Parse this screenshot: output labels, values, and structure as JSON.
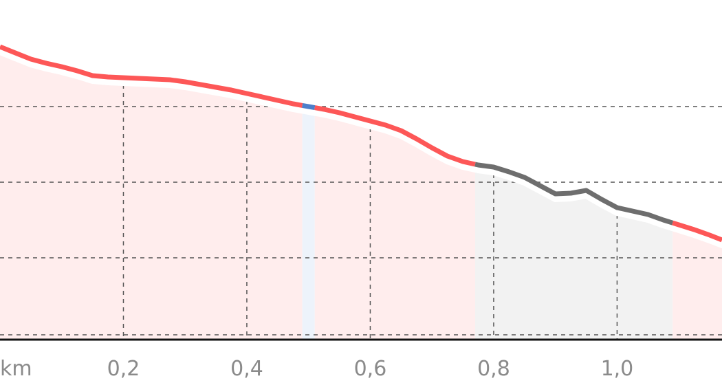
{
  "chart_data": {
    "type": "area",
    "title": "",
    "xlabel": "",
    "ylabel": "",
    "x_unit": "km",
    "xlim": [
      0,
      1.17
    ],
    "x_ticks": [
      {
        "value": 0.2,
        "label": "0,2"
      },
      {
        "value": 0.4,
        "label": "0,4"
      },
      {
        "value": 0.6,
        "label": "0,6"
      },
      {
        "value": 0.8,
        "label": "0,8"
      },
      {
        "value": 1.0,
        "label": "1,0"
      }
    ],
    "grid": true,
    "profile": [
      [
        0.0,
        68
      ],
      [
        0.025,
        77
      ],
      [
        0.05,
        86
      ],
      [
        0.075,
        92
      ],
      [
        0.1,
        97
      ],
      [
        0.125,
        103
      ],
      [
        0.15,
        110
      ],
      [
        0.175,
        112
      ],
      [
        0.2,
        113
      ],
      [
        0.225,
        114
      ],
      [
        0.25,
        115
      ],
      [
        0.275,
        116
      ],
      [
        0.3,
        119
      ],
      [
        0.325,
        123
      ],
      [
        0.35,
        127
      ],
      [
        0.375,
        131
      ],
      [
        0.4,
        136
      ],
      [
        0.425,
        141
      ],
      [
        0.45,
        146
      ],
      [
        0.475,
        151
      ],
      [
        0.5,
        155
      ],
      [
        0.525,
        159
      ],
      [
        0.55,
        164
      ],
      [
        0.575,
        170
      ],
      [
        0.6,
        176
      ],
      [
        0.625,
        182
      ],
      [
        0.65,
        190
      ],
      [
        0.675,
        202
      ],
      [
        0.7,
        215
      ],
      [
        0.725,
        227
      ],
      [
        0.75,
        235
      ],
      [
        0.775,
        240
      ],
      [
        0.8,
        243
      ],
      [
        0.825,
        250
      ],
      [
        0.85,
        258
      ],
      [
        0.875,
        270
      ],
      [
        0.9,
        282
      ],
      [
        0.925,
        281
      ],
      [
        0.95,
        277
      ],
      [
        0.975,
        290
      ],
      [
        1.0,
        302
      ],
      [
        1.025,
        307
      ],
      [
        1.05,
        312
      ],
      [
        1.075,
        320
      ],
      [
        1.1,
        327
      ],
      [
        1.125,
        334
      ],
      [
        1.15,
        342
      ],
      [
        1.17,
        349
      ]
    ],
    "segments": [
      {
        "from": 0.0,
        "to": 0.49,
        "color": "#fd5757",
        "fill": "#ffeded"
      },
      {
        "from": 0.49,
        "to": 0.51,
        "color": "#4d7fca",
        "fill": "#edf3fb"
      },
      {
        "from": 0.51,
        "to": 0.77,
        "color": "#fd5757",
        "fill": "#ffeded"
      },
      {
        "from": 0.77,
        "to": 1.09,
        "color": "#6e6e6e",
        "fill": "#f2f2f2"
      },
      {
        "from": 1.09,
        "to": 1.17,
        "color": "#fd5757",
        "fill": "#ffeded"
      }
    ]
  }
}
